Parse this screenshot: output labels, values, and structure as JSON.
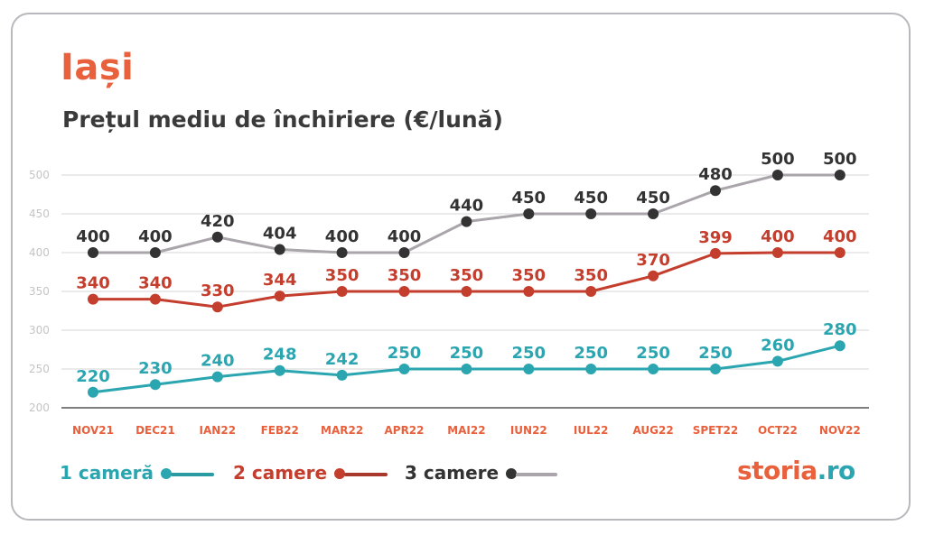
{
  "title": "Iași",
  "subtitle": "Prețul mediu de închiriere (€/lună)",
  "legend": [
    {
      "label": "1 cameră",
      "color": "#2ba6b0",
      "line_color": "#2a9aa3"
    },
    {
      "label": "2 camere",
      "color": "#c43e2e",
      "line_color": "#a9382c"
    },
    {
      "label": "3 camere",
      "color": "#333333",
      "line_color": "#aaa4ab"
    }
  ],
  "brand": {
    "part1": "storia",
    "part2": ".ro"
  },
  "colors": {
    "accent": "#e8603c",
    "teal": "#2ba6b0",
    "red": "#c43e2e",
    "dark": "#333333",
    "grey_line": "#aaa4ab"
  },
  "chart_data": {
    "type": "line",
    "categories": [
      "NOV21",
      "DEC21",
      "IAN22",
      "FEB22",
      "MAR22",
      "APR22",
      "MAI22",
      "IUN22",
      "IUL22",
      "AUG22",
      "SPET22",
      "OCT22",
      "NOV22"
    ],
    "series": [
      {
        "name": "1 cameră",
        "values": [
          220,
          230,
          240,
          248,
          242,
          250,
          250,
          250,
          250,
          250,
          250,
          260,
          280
        ]
      },
      {
        "name": "2 camere",
        "values": [
          340,
          340,
          330,
          344,
          350,
          350,
          350,
          350,
          350,
          370,
          399,
          400,
          400
        ]
      },
      {
        "name": "3 camere",
        "values": [
          400,
          400,
          420,
          404,
          400,
          400,
          440,
          450,
          450,
          450,
          480,
          500,
          500
        ]
      }
    ],
    "yticks": [
      200,
      250,
      300,
      350,
      400,
      450,
      500
    ],
    "ylim": [
      200,
      500
    ],
    "grid": true,
    "legend_position": "bottom-left"
  }
}
